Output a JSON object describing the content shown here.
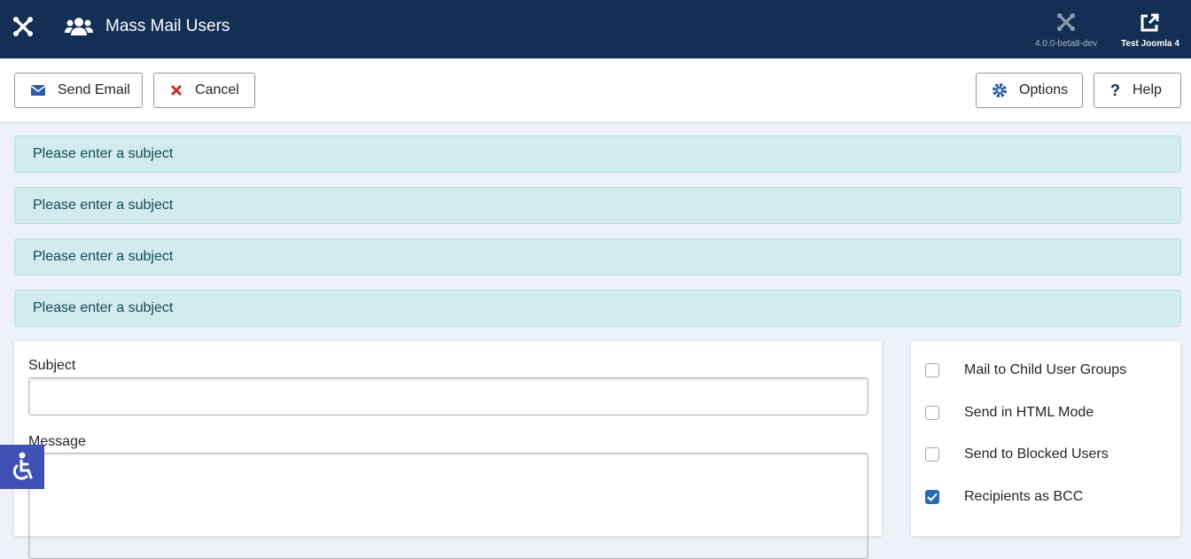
{
  "header": {
    "title": "Mass Mail Users",
    "version": "4.0.0-beta8-dev",
    "site": "Test Joomla 4"
  },
  "toolbar": {
    "send": "Send Email",
    "cancel": "Cancel",
    "options": "Options",
    "help": "Help"
  },
  "alerts": [
    "Please enter a subject",
    "Please enter a subject",
    "Please enter a subject",
    "Please enter a subject"
  ],
  "form": {
    "subject_label": "Subject",
    "message_label": "Message"
  },
  "options": [
    {
      "label": "Mail to Child User Groups",
      "checked": false
    },
    {
      "label": "Send in HTML Mode",
      "checked": false
    },
    {
      "label": "Send to Blocked Users",
      "checked": false
    },
    {
      "label": "Recipients as BCC",
      "checked": true
    }
  ]
}
